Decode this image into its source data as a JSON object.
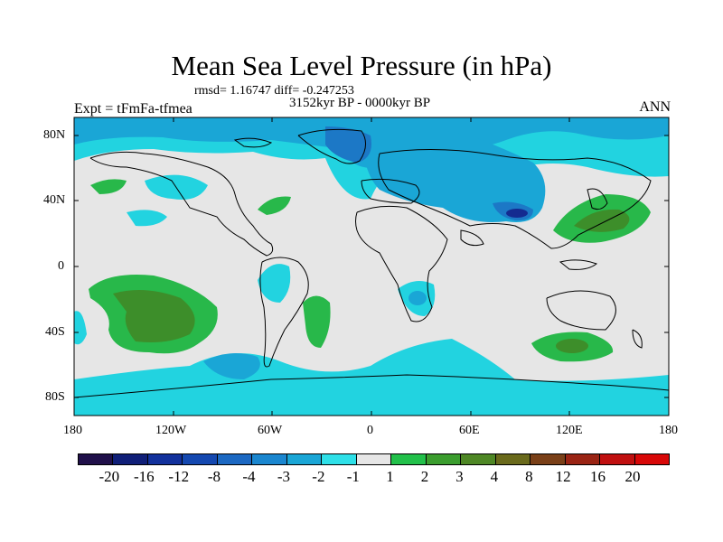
{
  "title": "Mean Sea Level Pressure (in hPa)",
  "stats": "rmsd= 1.16747 diff= -0.247253",
  "expt": "Expt = tFmFa-tfmea",
  "period": "3152kyr BP - 0000kyr BP",
  "season": "ANN",
  "lat_labels": [
    "80N",
    "40N",
    "0",
    "40S",
    "80S"
  ],
  "lon_labels": [
    "180",
    "120W",
    "60W",
    "0",
    "60E",
    "120E",
    "180"
  ],
  "legend_labels": [
    "-20",
    "-16",
    "-12",
    "-8",
    "-4",
    "-3",
    "-2",
    "-1",
    "1",
    "2",
    "3",
    "4",
    "8",
    "12",
    "16",
    "20"
  ],
  "colors": {
    "background_band": "#e6e6e6",
    "cyan": "#22d3e0",
    "light_blue": "#1aa6d6",
    "blue": "#1c78c6",
    "dark_blue": "#142a90",
    "green": "#28b84a",
    "olive": "#3d8e2a",
    "brown": "#5a7a26"
  },
  "colorbar": [
    "#20104a",
    "#101f78",
    "#12319c",
    "#1448b0",
    "#1c68c2",
    "#1a86cf",
    "#1aa6d6",
    "#2ee0e8",
    "#e6e6e6",
    "#22c04a",
    "#3b9d2e",
    "#4e8725",
    "#6a6a1c",
    "#7a4018",
    "#9a2414",
    "#c01010",
    "#d80808"
  ]
}
